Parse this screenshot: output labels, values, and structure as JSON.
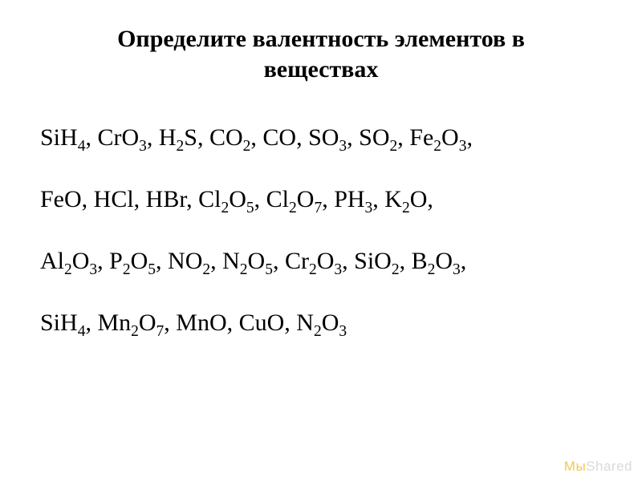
{
  "title_line1": "Определите валентность элементов в",
  "title_line2": "веществах",
  "rows": [
    [
      {
        "el": "Si",
        "sub": ""
      },
      {
        "el": "H",
        "sub": "4"
      },
      {
        "sep": ", "
      },
      {
        "el": "Cr",
        "sub": ""
      },
      {
        "el": "O",
        "sub": "3"
      },
      {
        "sep": ", "
      },
      {
        "el": "H",
        "sub": "2"
      },
      {
        "el": "S",
        "sub": ""
      },
      {
        "sep": ", "
      },
      {
        "el": "C",
        "sub": ""
      },
      {
        "el": "O",
        "sub": "2"
      },
      {
        "sep": ", "
      },
      {
        "el": "C",
        "sub": ""
      },
      {
        "el": "O",
        "sub": ""
      },
      {
        "sep": ", "
      },
      {
        "el": "S",
        "sub": ""
      },
      {
        "el": "O",
        "sub": "3"
      },
      {
        "sep": ", "
      },
      {
        "el": "S",
        "sub": ""
      },
      {
        "el": "O",
        "sub": "2"
      },
      {
        "sep": ", "
      },
      {
        "el": "Fe",
        "sub": "2"
      },
      {
        "el": "O",
        "sub": "3"
      },
      {
        "sep": ","
      }
    ],
    [
      {
        "el": "Fe",
        "sub": ""
      },
      {
        "el": "O",
        "sub": ""
      },
      {
        "sep": ", "
      },
      {
        "el": "H",
        "sub": ""
      },
      {
        "el": "Cl",
        "sub": ""
      },
      {
        "sep": ", "
      },
      {
        "el": "H",
        "sub": ""
      },
      {
        "el": "Br",
        "sub": ""
      },
      {
        "sep": ", "
      },
      {
        "el": "Cl",
        "sub": "2"
      },
      {
        "el": "O",
        "sub": "5"
      },
      {
        "sep": ", "
      },
      {
        "el": "Cl",
        "sub": "2"
      },
      {
        "el": "O",
        "sub": "7"
      },
      {
        "sep": ", "
      },
      {
        "el": "P",
        "sub": ""
      },
      {
        "el": "H",
        "sub": "3"
      },
      {
        "sep": ", "
      },
      {
        "el": "K",
        "sub": "2"
      },
      {
        "el": "O",
        "sub": ""
      },
      {
        "sep": ","
      }
    ],
    [
      {
        "el": "Al",
        "sub": "2"
      },
      {
        "el": "O",
        "sub": "3"
      },
      {
        "sep": ", "
      },
      {
        "el": "P",
        "sub": "2"
      },
      {
        "el": "O",
        "sub": "5"
      },
      {
        "sep": ", "
      },
      {
        "el": "N",
        "sub": ""
      },
      {
        "el": "O",
        "sub": "2"
      },
      {
        "sep": ", "
      },
      {
        "el": "N",
        "sub": "2"
      },
      {
        "el": "O",
        "sub": "5"
      },
      {
        "sep": ", "
      },
      {
        "el": "Cr",
        "sub": "2"
      },
      {
        "el": "O",
        "sub": "3"
      },
      {
        "sep": ", "
      },
      {
        "el": "Si",
        "sub": ""
      },
      {
        "el": "O",
        "sub": "2"
      },
      {
        "sep": ", "
      },
      {
        "el": "B",
        "sub": "2"
      },
      {
        "el": "O",
        "sub": "3"
      },
      {
        "sep": ","
      }
    ],
    [
      {
        "el": "Si",
        "sub": ""
      },
      {
        "el": "H",
        "sub": "4"
      },
      {
        "sep": ", "
      },
      {
        "el": "Mn",
        "sub": "2"
      },
      {
        "el": "O",
        "sub": "7"
      },
      {
        "sep": ", "
      },
      {
        "el": "Mn",
        "sub": ""
      },
      {
        "el": "O",
        "sub": ""
      },
      {
        "sep": ", "
      },
      {
        "el": "Cu",
        "sub": ""
      },
      {
        "el": "O",
        "sub": ""
      },
      {
        "sep": ", "
      },
      {
        "el": "N",
        "sub": "2"
      },
      {
        "el": "O",
        "sub": "3"
      }
    ]
  ],
  "watermark": {
    "left": "Мы",
    "right": "Shared"
  },
  "colors": {
    "text": "#000000",
    "background": "#ffffff",
    "watermark_gray": "#d9d9d9",
    "watermark_accent": "#f2c94c"
  },
  "fonts": {
    "title_size_pt": 22,
    "body_size_pt": 22,
    "family": "Times New Roman"
  }
}
